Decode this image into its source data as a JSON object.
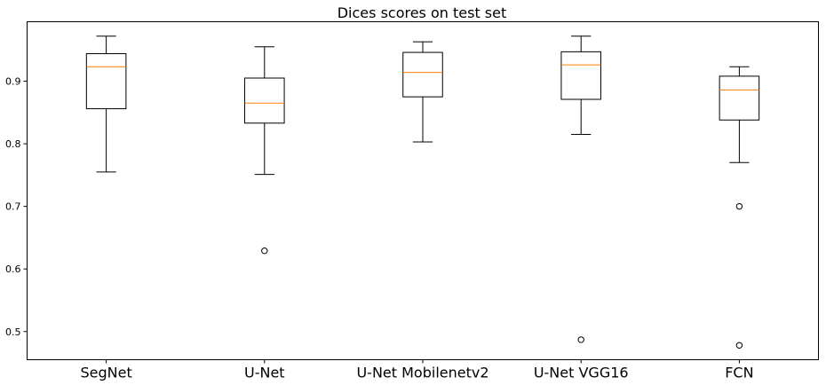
{
  "chart_data": {
    "type": "box",
    "title": "Dices scores on test set",
    "xlabel": "",
    "ylabel": "",
    "ylim": [
      0.455,
      0.995
    ],
    "yticks": [
      "0.5",
      "0.6",
      "0.7",
      "0.8",
      "0.9"
    ],
    "grid": false,
    "colors": {
      "box": "#000000",
      "median": "#ff7f0e",
      "axes": "#000000"
    },
    "series": [
      {
        "name": "SegNet",
        "whisker_low": 0.755,
        "q1": 0.856,
        "median": 0.923,
        "q3": 0.944,
        "whisker_high": 0.972,
        "outliers": []
      },
      {
        "name": "U-Net",
        "whisker_low": 0.751,
        "q1": 0.833,
        "median": 0.865,
        "q3": 0.905,
        "whisker_high": 0.955,
        "outliers": [
          0.629
        ]
      },
      {
        "name": "U-Net Mobilenetv2",
        "whisker_low": 0.803,
        "q1": 0.875,
        "median": 0.914,
        "q3": 0.946,
        "whisker_high": 0.963,
        "outliers": []
      },
      {
        "name": "U-Net VGG16",
        "whisker_low": 0.815,
        "q1": 0.871,
        "median": 0.926,
        "q3": 0.947,
        "whisker_high": 0.972,
        "outliers": [
          0.487
        ]
      },
      {
        "name": "FCN",
        "whisker_low": 0.77,
        "q1": 0.838,
        "median": 0.886,
        "q3": 0.908,
        "whisker_high": 0.923,
        "outliers": [
          0.7,
          0.478
        ]
      }
    ]
  }
}
